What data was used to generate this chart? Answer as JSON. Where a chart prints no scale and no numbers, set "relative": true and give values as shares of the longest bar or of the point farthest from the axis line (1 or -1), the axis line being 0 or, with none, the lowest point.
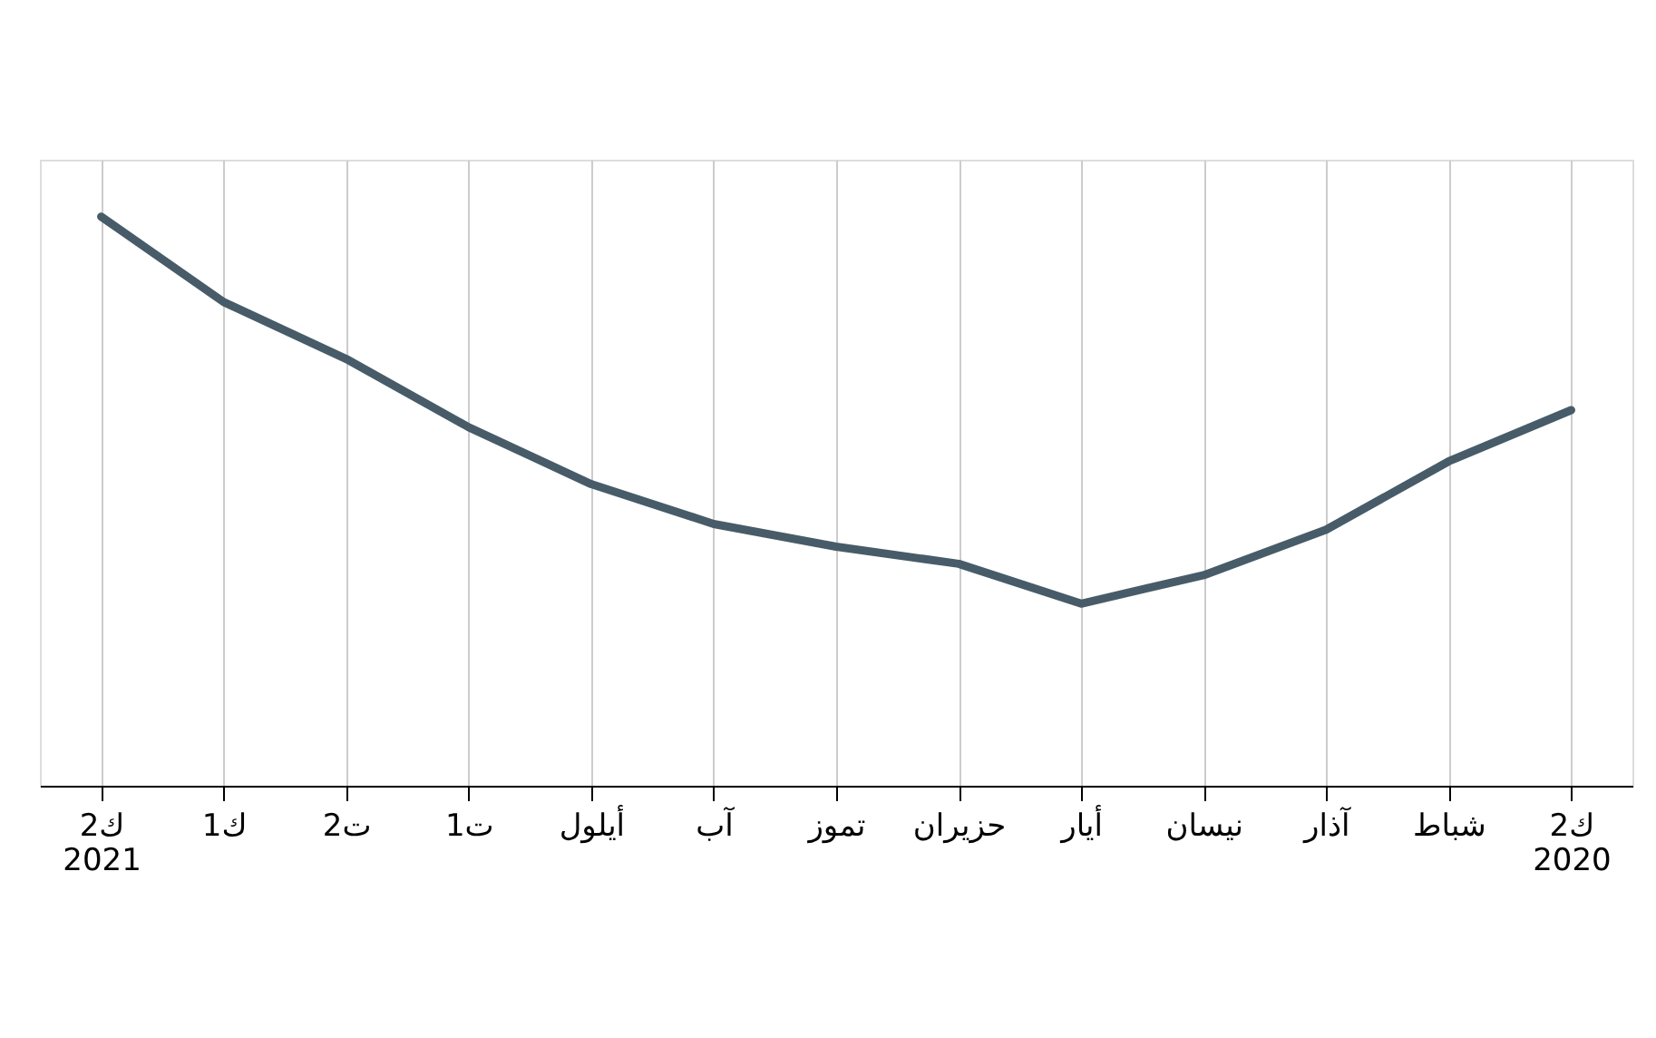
{
  "chart_data": {
    "type": "line",
    "relative": true,
    "categories": [
      "ك2\n2021",
      "ك1",
      "ت2",
      "ت1",
      "أيلول",
      "آب",
      "تموز",
      "حزيران",
      "أيار",
      "نيسان",
      "آذار",
      "شباط",
      "ك2\n2020"
    ],
    "series": [
      {
        "color": "#475c68",
        "values": [
          1,
          0.85,
          0.75,
          0.63,
          0.53,
          0.46,
          0.42,
          0.39,
          0.32,
          0.37,
          0.45,
          0.57,
          0.66
        ]
      }
    ],
    "grid": "x",
    "marker": "none",
    "line_style": "solid"
  }
}
